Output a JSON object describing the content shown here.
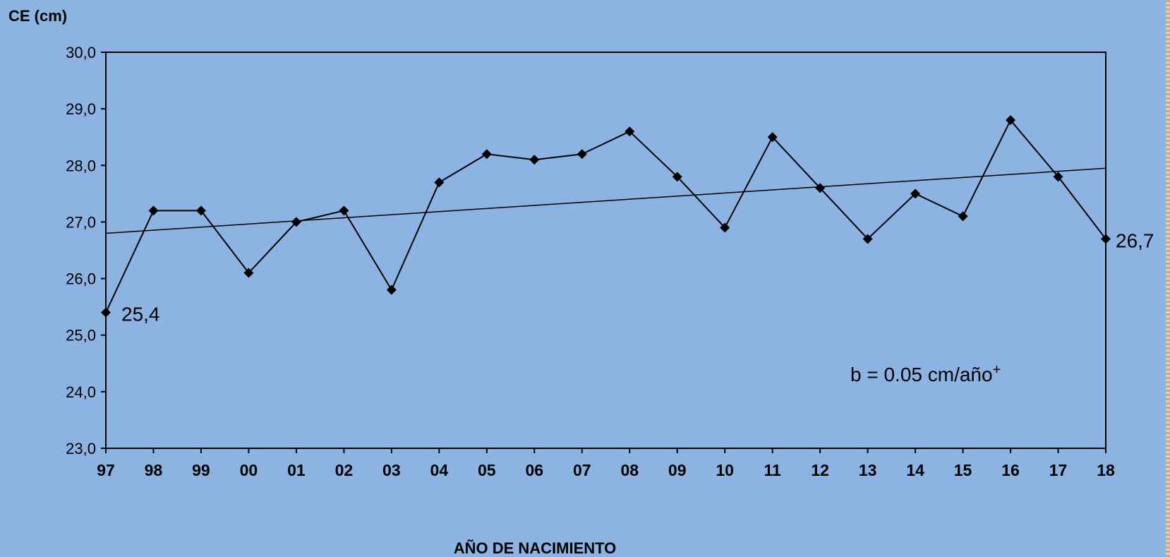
{
  "chart_data": {
    "type": "line",
    "ylabel": "CE (cm)",
    "xlabel": "AÑO DE NACIMIENTO",
    "ylim": [
      23.0,
      30.0
    ],
    "yticks": [
      "23,0",
      "24,0",
      "25,0",
      "26,0",
      "27,0",
      "28,0",
      "29,0",
      "30,0"
    ],
    "categories": [
      "97",
      "98",
      "99",
      "00",
      "01",
      "02",
      "03",
      "04",
      "05",
      "06",
      "07",
      "08",
      "09",
      "10",
      "11",
      "12",
      "13",
      "14",
      "15",
      "16",
      "17",
      "18"
    ],
    "series": [
      {
        "values": [
          25.4,
          27.2,
          27.2,
          26.1,
          27.0,
          27.2,
          25.8,
          27.7,
          28.2,
          28.1,
          28.2,
          28.6,
          27.8,
          26.9,
          28.5,
          27.6,
          26.7,
          27.5,
          27.1,
          28.8,
          27.8,
          26.7
        ],
        "color": "#000000",
        "marker": "diamond"
      }
    ],
    "trendline": {
      "start": 26.8,
      "end": 27.95
    },
    "annotations": {
      "first": "25,4",
      "last": "26,7",
      "slope": "b = 0.05 cm/año",
      "slope_sup": "+"
    },
    "grid": false,
    "legend": "none"
  }
}
